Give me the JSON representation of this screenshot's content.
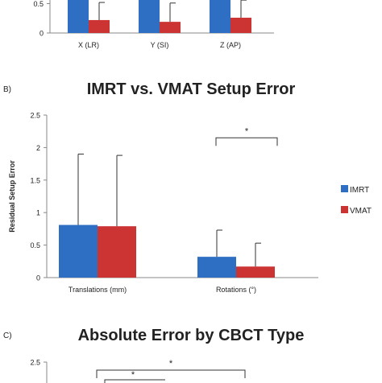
{
  "chart_data": [
    {
      "type": "bar",
      "panel": "",
      "title": "",
      "ylabel": "",
      "categories": [
        "X (LR)",
        "Y (SI)",
        "Z (AP)"
      ],
      "series": [
        {
          "name": "IMRT",
          "values": [
            0.9,
            0.9,
            0.9
          ],
          "error": [
            0.3,
            0.3,
            0.3
          ]
        },
        {
          "name": "VMAT",
          "values": [
            0.22,
            0.19,
            0.26
          ],
          "error": [
            0.3,
            0.32,
            0.3
          ]
        }
      ],
      "yticks": [
        "0",
        "0.5"
      ],
      "ylim": [
        0,
        0.9
      ]
    },
    {
      "type": "bar",
      "panel": "B)",
      "title": "IMRT vs. VMAT Setup Error",
      "ylabel": "Residual Setup Error",
      "categories": [
        "Translations (mm)",
        "Rotations (°)"
      ],
      "series": [
        {
          "name": "IMRT",
          "values": [
            0.81,
            0.32
          ],
          "error": [
            1.09,
            0.41
          ]
        },
        {
          "name": "VMAT",
          "values": [
            0.79,
            0.17
          ],
          "error": [
            1.09,
            0.36
          ]
        }
      ],
      "yticks": [
        "0",
        "0.5",
        "1",
        "1.5",
        "2",
        "2.5"
      ],
      "ylim": [
        0,
        2.5
      ],
      "annotations": [
        "*"
      ],
      "legend": "right"
    },
    {
      "type": "bar",
      "panel": "C)",
      "title": "Absolute Error by CBCT Type",
      "ylabel": "",
      "categories": [],
      "series": [],
      "yticks": [
        "2.5"
      ],
      "ylim": [
        0,
        2.5
      ],
      "annotations": [
        "*",
        "*"
      ]
    }
  ],
  "colors": {
    "imrt": "#2e6fc4",
    "vmat": "#cc3333",
    "axis": "#888888"
  }
}
